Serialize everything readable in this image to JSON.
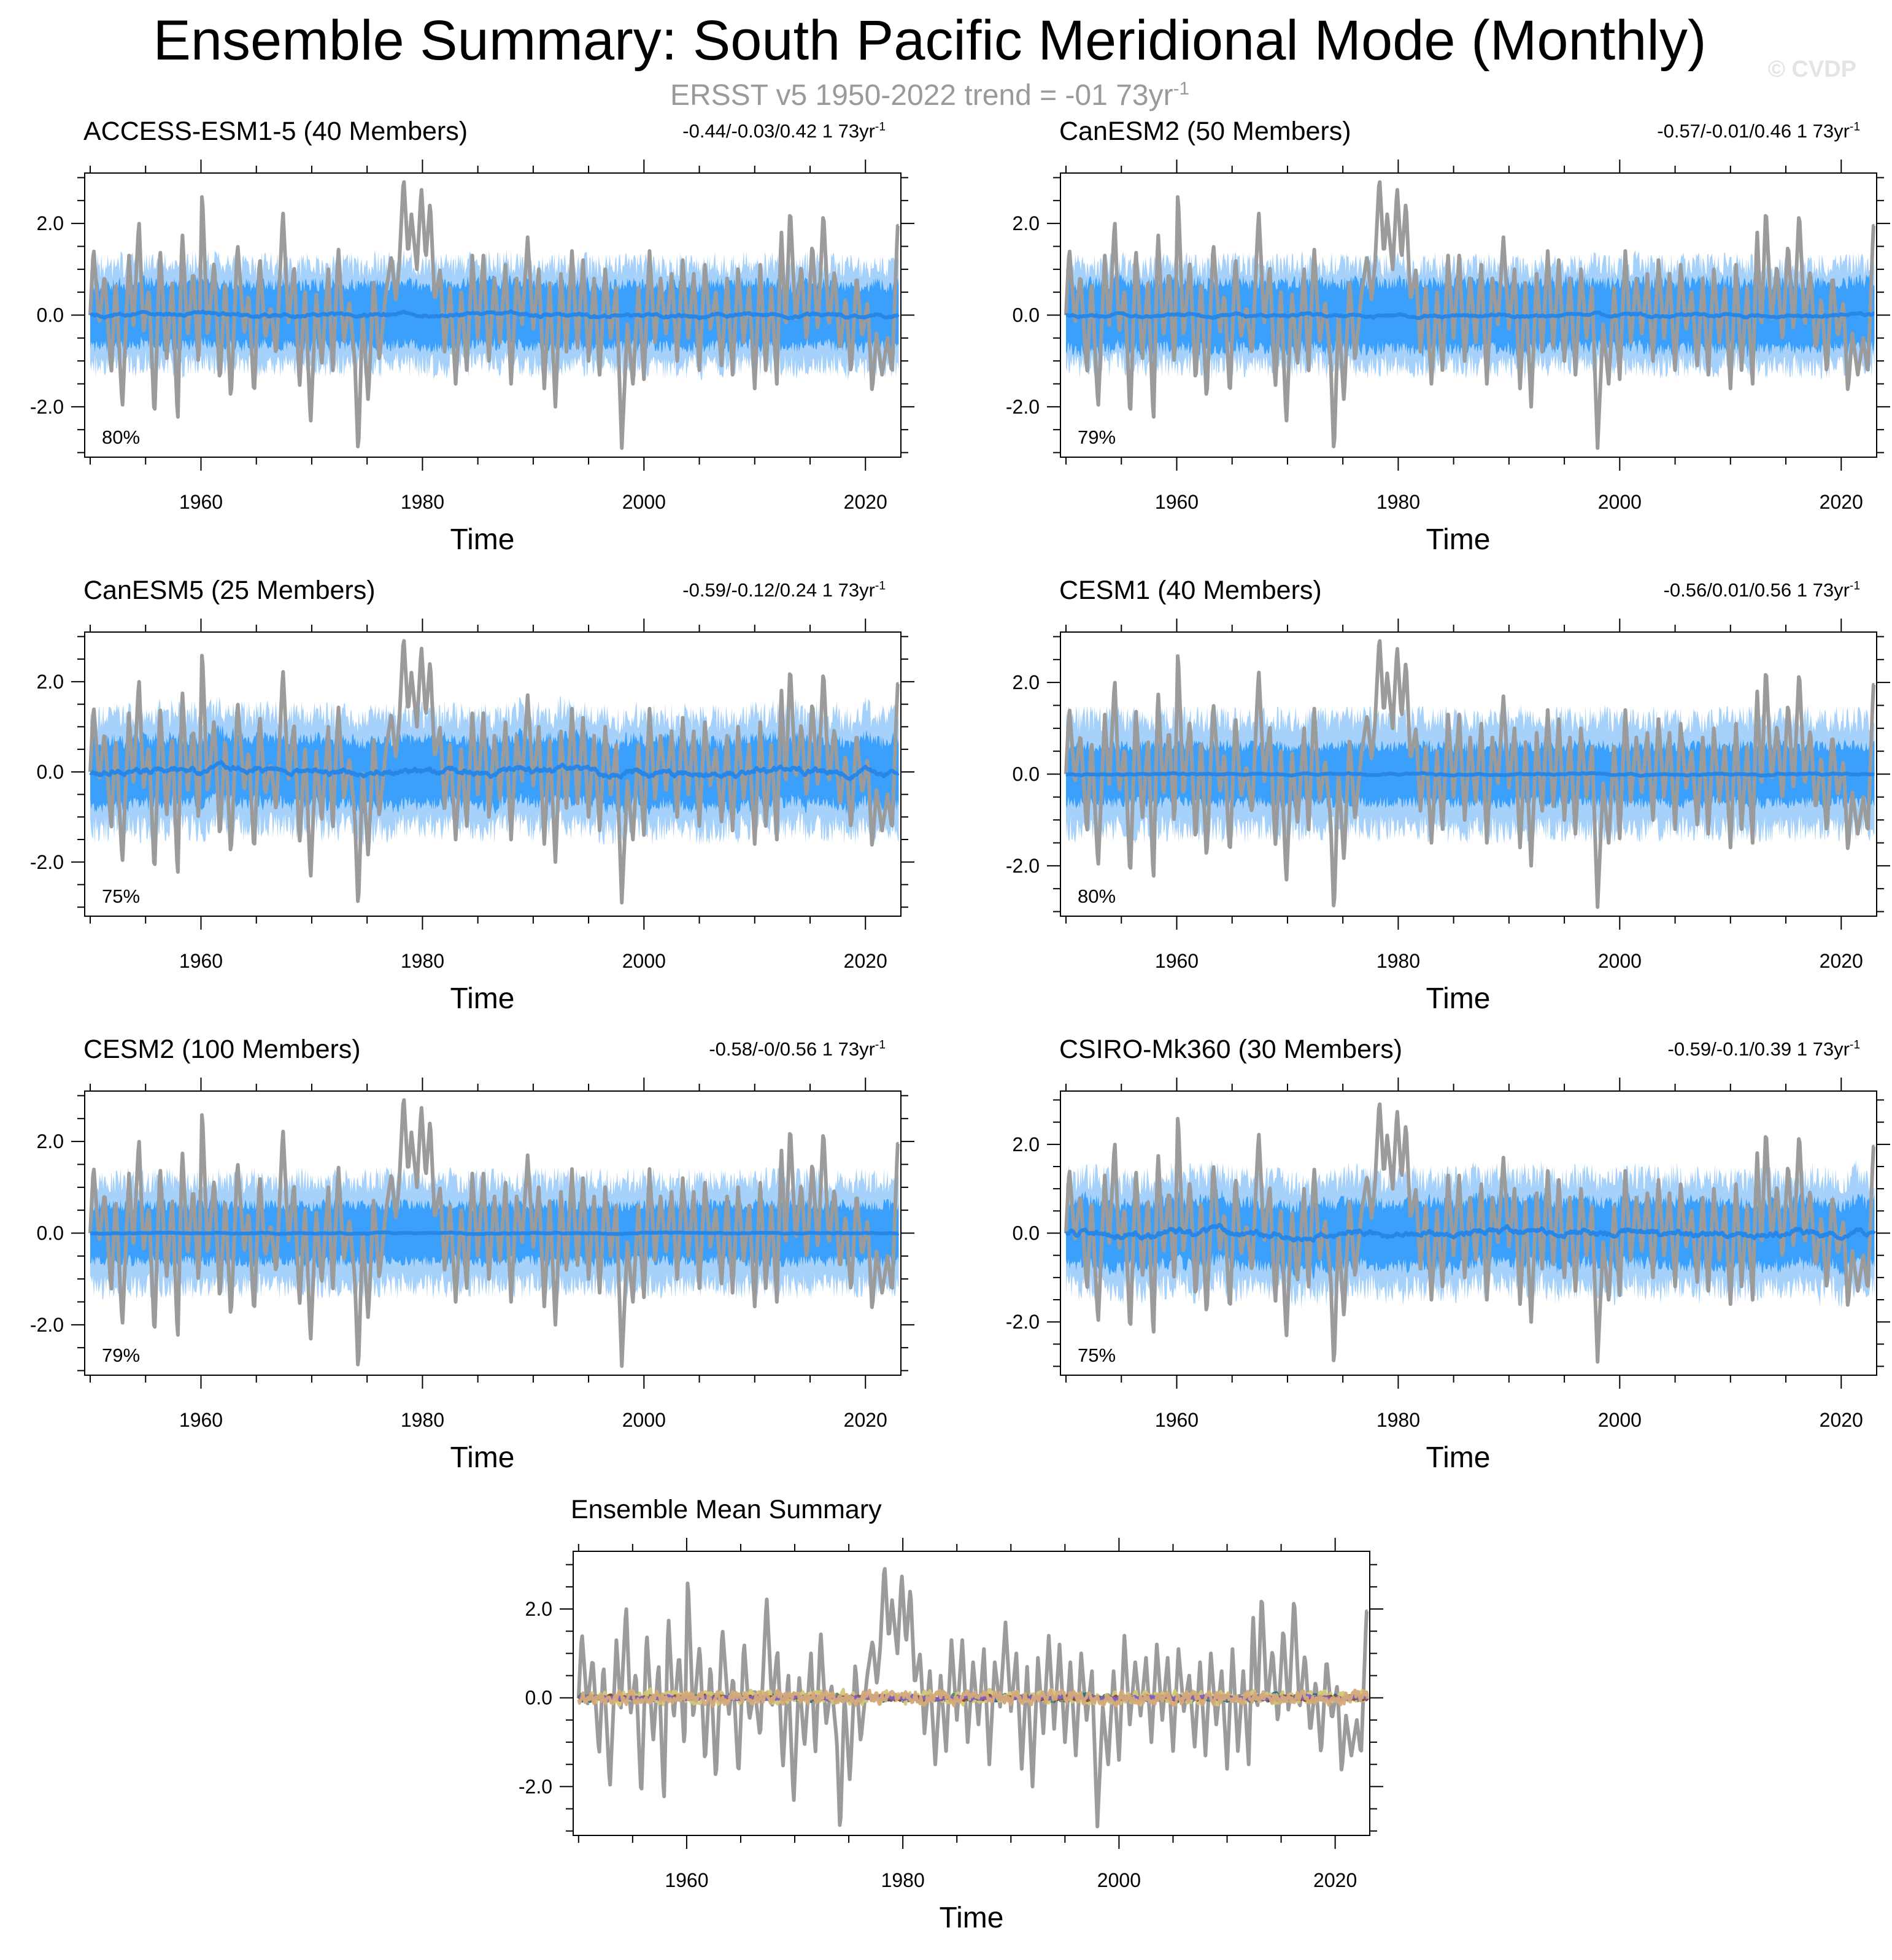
{
  "header": {
    "title": "Ensemble Summary: South Pacific Meridional Mode (Monthly)",
    "subtitle_prefix": "ERSST v5 1950-2022 trend = -01 73yr",
    "subtitle_exp": "-1",
    "watermark": "© CVDP"
  },
  "colors": {
    "obs": "#9b9b9b",
    "band_outer": "#a6d1fb",
    "band_inner": "#3ba0fb",
    "mean_line": "#2786e6"
  },
  "chart_data": [
    {
      "id": "access",
      "type": "line",
      "title": "ACCESS-ESM1-5 (40 Members)",
      "title_color": "#1c6d86",
      "stats": "-0.44/-0.03/0.42 1 73yr",
      "stats_exp": "-1",
      "pct": "80%",
      "xlabel": "Time",
      "xlim": [
        1949.5,
        2023.2
      ],
      "ylim": [
        -3.1,
        3.1
      ],
      "yticks": [
        "2.0",
        "0.0",
        "-2.0"
      ],
      "ytick_values": [
        2,
        0,
        -2
      ],
      "xticks": [
        "1960",
        "1980",
        "2000",
        "2020"
      ],
      "xtick_values": [
        1960,
        1980,
        2000,
        2020
      ],
      "outer_half": 1.1,
      "inner_half": 0.65,
      "mean_amp": 0.07,
      "seed": 11
    },
    {
      "id": "canesm2",
      "type": "line",
      "title": "CanESM2 (50 Members)",
      "title_color": "#5a8a5a",
      "stats": "-0.57/-0.01/0.46 1 73yr",
      "stats_exp": "-1",
      "pct": "79%",
      "xlabel": "Time",
      "xlim": [
        1949.5,
        2023.2
      ],
      "ylim": [
        -3.1,
        3.1
      ],
      "yticks": [
        "2.0",
        "0.0",
        "-2.0"
      ],
      "ytick_values": [
        2,
        0,
        -2
      ],
      "xticks": [
        "1960",
        "1980",
        "2000",
        "2020"
      ],
      "xtick_values": [
        1960,
        1980,
        2000,
        2020
      ],
      "outer_half": 1.1,
      "inner_half": 0.7,
      "mean_amp": 0.06,
      "seed": 23
    },
    {
      "id": "canesm5",
      "type": "line",
      "title": "CanESM5 (25 Members)",
      "title_color": "#d4c77a",
      "stats": "-0.59/-0.12/0.24 1 73yr",
      "stats_exp": "-1",
      "pct": "75%",
      "xlabel": "Time",
      "xlim": [
        1949.5,
        2023.2
      ],
      "ylim": [
        -3.2,
        3.1
      ],
      "yticks": [
        "2.0",
        "0.0",
        "-2.0"
      ],
      "ytick_values": [
        2,
        0,
        -2
      ],
      "xticks": [
        "1960",
        "1980",
        "2000",
        "2020"
      ],
      "xtick_values": [
        1960,
        1980,
        2000,
        2020
      ],
      "outer_half": 1.25,
      "inner_half": 0.7,
      "mean_amp": 0.14,
      "seed": 37
    },
    {
      "id": "cesm1",
      "type": "line",
      "title": "CESM1 (40 Members)",
      "title_color": "#8a4a1e",
      "stats": "-0.56/0.01/0.56 1 73yr",
      "stats_exp": "-1",
      "pct": "80%",
      "xlabel": "Time",
      "xlim": [
        1949.5,
        2023.2
      ],
      "ylim": [
        -3.1,
        3.1
      ],
      "yticks": [
        "2.0",
        "0.0",
        "-2.0"
      ],
      "ytick_values": [
        2,
        0,
        -2
      ],
      "xticks": [
        "1960",
        "1980",
        "2000",
        "2020"
      ],
      "xtick_values": [
        1960,
        1980,
        2000,
        2020
      ],
      "outer_half": 1.2,
      "inner_half": 0.6,
      "mean_amp": 0.03,
      "seed": 41
    },
    {
      "id": "cesm2",
      "type": "line",
      "title": "CESM2 (100 Members)",
      "title_color": "#8061c7",
      "stats": "-0.58/-0/0.56 1 73yr",
      "stats_exp": "-1",
      "pct": "79%",
      "xlabel": "Time",
      "xlim": [
        1949.5,
        2023.2
      ],
      "ylim": [
        -3.1,
        3.1
      ],
      "yticks": [
        "2.0",
        "0.0",
        "-2.0"
      ],
      "ytick_values": [
        2,
        0,
        -2
      ],
      "xticks": [
        "1960",
        "1980",
        "2000",
        "2020"
      ],
      "xtick_values": [
        1960,
        1980,
        2000,
        2020
      ],
      "outer_half": 1.15,
      "inner_half": 0.6,
      "mean_amp": 0.02,
      "seed": 53
    },
    {
      "id": "csiro",
      "type": "line",
      "title": "CSIRO-Mk360 (30 Members)",
      "title_color": "#d5aa7a",
      "stats": "-0.59/-0.1/0.39 1 73yr",
      "stats_exp": "-1",
      "pct": "75%",
      "xlabel": "Time",
      "xlim": [
        1949.5,
        2023.2
      ],
      "ylim": [
        -3.2,
        3.2
      ],
      "yticks": [
        "2.0",
        "0.0",
        "-2.0"
      ],
      "ytick_values": [
        2,
        0,
        -2
      ],
      "xticks": [
        "1960",
        "1980",
        "2000",
        "2020"
      ],
      "xtick_values": [
        1960,
        1980,
        2000,
        2020
      ],
      "outer_half": 1.25,
      "inner_half": 0.7,
      "mean_amp": 0.14,
      "seed": 67
    },
    {
      "id": "ensmean",
      "type": "line",
      "title": "Ensemble Mean Summary",
      "title_color": "#000000",
      "xlabel": "Time",
      "xlim": [
        1949.5,
        2023.2
      ],
      "ylim": [
        -3.1,
        3.3
      ],
      "yticks": [
        "2.0",
        "0.0",
        "-2.0"
      ],
      "ytick_values": [
        2,
        0,
        -2
      ],
      "xticks": [
        "1960",
        "1980",
        "2000",
        "2020"
      ],
      "xtick_values": [
        1960,
        1980,
        2000,
        2020
      ],
      "series": [
        {
          "name": "ACCESS-ESM1-5",
          "color": "#1c6d86",
          "amp": 0.08
        },
        {
          "name": "CanESM2",
          "color": "#5a8a5a",
          "amp": 0.07
        },
        {
          "name": "CanESM5",
          "color": "#d4c77a",
          "amp": 0.16
        },
        {
          "name": "CESM1",
          "color": "#8a4a1e",
          "amp": 0.05
        },
        {
          "name": "CESM2",
          "color": "#8061c7",
          "amp": 0.05
        },
        {
          "name": "CSIRO-Mk360",
          "color": "#d5aa7a",
          "amp": 0.16
        }
      ]
    }
  ],
  "observed_series": {
    "name": "ERSST v5",
    "color": "#9b9b9b",
    "key_points": [
      [
        1950.0,
        0.0
      ],
      [
        1950.3,
        1.5
      ],
      [
        1950.8,
        -0.2
      ],
      [
        1951.3,
        0.9
      ],
      [
        1951.9,
        -1.3
      ],
      [
        1952.3,
        0.8
      ],
      [
        1952.9,
        -2.05
      ],
      [
        1953.5,
        1.3
      ],
      [
        1953.9,
        -0.3
      ],
      [
        1954.4,
        2.1
      ],
      [
        1954.8,
        -0.4
      ],
      [
        1955.3,
        0.6
      ],
      [
        1955.8,
        -2.3
      ],
      [
        1956.3,
        1.5
      ],
      [
        1956.9,
        -1.0
      ],
      [
        1957.4,
        0.8
      ],
      [
        1957.9,
        -2.4
      ],
      [
        1958.3,
        1.9
      ],
      [
        1958.8,
        -0.5
      ],
      [
        1959.3,
        1.0
      ],
      [
        1959.8,
        -1.2
      ],
      [
        1960.1,
        2.8
      ],
      [
        1960.6,
        -0.5
      ],
      [
        1961.2,
        1.2
      ],
      [
        1961.7,
        -1.5
      ],
      [
        1962.2,
        0.8
      ],
      [
        1962.7,
        -1.9
      ],
      [
        1963.3,
        1.6
      ],
      [
        1963.9,
        -0.4
      ],
      [
        1964.3,
        0.5
      ],
      [
        1964.8,
        -1.8
      ],
      [
        1965.3,
        1.3
      ],
      [
        1965.8,
        -0.5
      ],
      [
        1966.3,
        0.2
      ],
      [
        1966.8,
        -0.9
      ],
      [
        1967.4,
        2.3
      ],
      [
        1967.9,
        -0.2
      ],
      [
        1968.4,
        1.1
      ],
      [
        1968.9,
        -1.6
      ],
      [
        1969.4,
        0.6
      ],
      [
        1969.9,
        -2.4
      ],
      [
        1970.4,
        0.5
      ],
      [
        1970.9,
        -1.1
      ],
      [
        1971.5,
        1.0
      ],
      [
        1971.9,
        -1.3
      ],
      [
        1972.4,
        1.5
      ],
      [
        1972.9,
        -0.6
      ],
      [
        1973.4,
        0.3
      ],
      [
        1973.9,
        -1.0
      ],
      [
        1974.2,
        -3.1
      ],
      [
        1974.6,
        0.1
      ],
      [
        1975.1,
        -1.9
      ],
      [
        1975.6,
        0.8
      ],
      [
        1976.1,
        -1.0
      ],
      [
        1976.7,
        0.5
      ],
      [
        1977.2,
        1.3
      ],
      [
        1977.6,
        0.3
      ],
      [
        1977.9,
        1.1
      ],
      [
        1978.3,
        3.05
      ],
      [
        1978.7,
        1.3
      ],
      [
        1979.0,
        2.2
      ],
      [
        1979.5,
        1.0
      ],
      [
        1979.9,
        2.8
      ],
      [
        1980.3,
        1.2
      ],
      [
        1980.7,
        2.5
      ],
      [
        1981.1,
        0.3
      ],
      [
        1981.6,
        1.0
      ],
      [
        1982.0,
        -0.8
      ],
      [
        1982.5,
        0.6
      ],
      [
        1983.0,
        -1.5
      ],
      [
        1983.5,
        0.5
      ],
      [
        1984.0,
        -1.2
      ],
      [
        1984.5,
        1.3
      ],
      [
        1985.0,
        -0.5
      ],
      [
        1985.5,
        1.3
      ],
      [
        1986.0,
        -1.0
      ],
      [
        1986.5,
        0.8
      ],
      [
        1987.0,
        -0.6
      ],
      [
        1987.5,
        1.1
      ],
      [
        1988.0,
        -1.5
      ],
      [
        1988.5,
        0.8
      ],
      [
        1989.0,
        -0.2
      ],
      [
        1989.5,
        1.7
      ],
      [
        1990.0,
        -0.3
      ],
      [
        1990.5,
        1.0
      ],
      [
        1991.0,
        -1.6
      ],
      [
        1991.5,
        0.7
      ],
      [
        1992.0,
        -2.0
      ],
      [
        1992.5,
        0.9
      ],
      [
        1993.0,
        -0.8
      ],
      [
        1993.5,
        1.4
      ],
      [
        1994.0,
        -0.7
      ],
      [
        1994.5,
        1.2
      ],
      [
        1995.0,
        -1.0
      ],
      [
        1995.5,
        0.8
      ],
      [
        1996.0,
        -1.3
      ],
      [
        1996.5,
        1.0
      ],
      [
        1997.0,
        -0.5
      ],
      [
        1997.5,
        0.6
      ],
      [
        1998.0,
        -2.9
      ],
      [
        1998.5,
        -0.2
      ],
      [
        1999.0,
        -1.5
      ],
      [
        1999.5,
        0.6
      ],
      [
        2000.0,
        -1.4
      ],
      [
        2000.5,
        1.4
      ],
      [
        2001.0,
        -0.6
      ],
      [
        2001.5,
        0.8
      ],
      [
        2002.0,
        -0.4
      ],
      [
        2002.5,
        0.9
      ],
      [
        2003.0,
        -1.0
      ],
      [
        2003.5,
        1.2
      ],
      [
        2004.0,
        -0.5
      ],
      [
        2004.5,
        0.9
      ],
      [
        2005.0,
        -1.2
      ],
      [
        2005.5,
        1.1
      ],
      [
        2006.0,
        -0.3
      ],
      [
        2006.5,
        0.5
      ],
      [
        2007.0,
        -1.1
      ],
      [
        2007.5,
        0.8
      ],
      [
        2008.0,
        -1.3
      ],
      [
        2008.5,
        1.0
      ],
      [
        2009.0,
        -0.6
      ],
      [
        2009.5,
        0.6
      ],
      [
        2010.0,
        -1.6
      ],
      [
        2010.5,
        1.1
      ],
      [
        2011.0,
        -1.2
      ],
      [
        2011.5,
        0.6
      ],
      [
        2012.0,
        -1.5
      ],
      [
        2012.4,
        1.9
      ],
      [
        2012.8,
        -0.4
      ],
      [
        2013.2,
        2.4
      ],
      [
        2013.7,
        -0.2
      ],
      [
        2014.2,
        1.1
      ],
      [
        2014.7,
        -0.6
      ],
      [
        2015.2,
        1.6
      ],
      [
        2015.7,
        -0.4
      ],
      [
        2016.2,
        2.3
      ],
      [
        2016.7,
        -0.3
      ],
      [
        2017.2,
        1.0
      ],
      [
        2017.7,
        -0.8
      ],
      [
        2018.2,
        0.4
      ],
      [
        2018.7,
        -1.3
      ],
      [
        2019.2,
        0.9
      ],
      [
        2019.7,
        -0.5
      ],
      [
        2020.2,
        0.3
      ],
      [
        2020.6,
        -1.7
      ],
      [
        2021.0,
        -0.4
      ],
      [
        2021.5,
        -1.3
      ],
      [
        2022.0,
        -0.5
      ],
      [
        2022.4,
        -1.3
      ],
      [
        2022.9,
        1.95
      ]
    ]
  }
}
